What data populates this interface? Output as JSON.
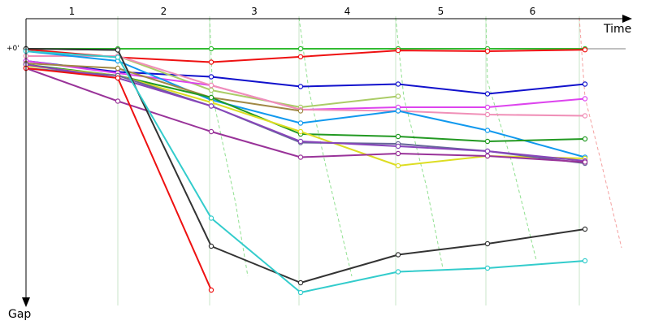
{
  "chart_data": {
    "type": "line",
    "title": "",
    "xlabel": "Time",
    "ylabel": "Gap",
    "zero_label": "+0'",
    "lap_labels": [
      "1",
      "2",
      "3",
      "4",
      "5",
      "6"
    ],
    "ylim": [
      0,
      1
    ],
    "grid": true,
    "colors": {
      "axis": "#000000",
      "baseline": "#808080",
      "grid": "#c8e6c8",
      "lap_trend": "#90e090",
      "lap_trend_last": "#f4a0a0"
    },
    "series": [
      {
        "color": "#33bb33",
        "points": [
          [
            0.0,
            0.0
          ],
          [
            1.0,
            0.0
          ],
          [
            2.0,
            0.0
          ],
          [
            3.0,
            0.0
          ],
          [
            4.0,
            0.0
          ],
          [
            5.0,
            0.0
          ],
          [
            6.0,
            0.0
          ]
        ]
      },
      {
        "color": "#666666",
        "points": [
          [
            0.0,
            0.0
          ],
          [
            1.0,
            0.005
          ]
        ]
      },
      {
        "color": "#ee1111",
        "points": [
          [
            0.0,
            0.003
          ],
          [
            1.0,
            0.035
          ],
          [
            2.0,
            0.055
          ],
          [
            3.0,
            0.033
          ],
          [
            4.0,
            0.007
          ],
          [
            5.0,
            0.01
          ],
          [
            6.0,
            0.004
          ]
        ]
      },
      {
        "color": "#1111cc",
        "points": [
          [
            0.0,
            0.05
          ],
          [
            1.0,
            0.095
          ],
          [
            2.0,
            0.115
          ],
          [
            3.0,
            0.155
          ],
          [
            4.0,
            0.145
          ],
          [
            5.0,
            0.185
          ],
          [
            6.0,
            0.145
          ]
        ]
      },
      {
        "color": "#aacc66",
        "points": [
          [
            0.0,
            0.03
          ],
          [
            1.0,
            0.03
          ],
          [
            2.0,
            0.17
          ],
          [
            3.0,
            0.24
          ],
          [
            4.0,
            0.195
          ]
        ]
      },
      {
        "color": "#dd44ee",
        "points": [
          [
            0.0,
            0.05
          ],
          [
            1.0,
            0.1
          ],
          [
            2.0,
            0.15
          ],
          [
            3.0,
            0.25
          ],
          [
            4.0,
            0.24
          ],
          [
            5.0,
            0.24
          ],
          [
            6.0,
            0.205
          ]
        ]
      },
      {
        "color": "#f090b8",
        "points": [
          [
            0.0,
            0.03
          ],
          [
            1.0,
            0.03
          ],
          [
            2.0,
            0.15
          ],
          [
            3.0,
            0.25
          ],
          [
            4.0,
            0.255
          ],
          [
            5.0,
            0.27
          ],
          [
            6.0,
            0.275
          ]
        ]
      },
      {
        "color": "#1199ee",
        "points": [
          [
            0.0,
            0.01
          ],
          [
            1.0,
            0.05
          ],
          [
            2.0,
            0.21
          ],
          [
            3.0,
            0.305
          ],
          [
            4.0,
            0.255
          ],
          [
            5.0,
            0.335
          ],
          [
            6.0,
            0.445
          ]
        ]
      },
      {
        "color": "#a08844",
        "points": [
          [
            0.0,
            0.06
          ],
          [
            1.0,
            0.08
          ],
          [
            2.0,
            0.2
          ],
          [
            3.0,
            0.255
          ]
        ]
      },
      {
        "color": "#229922",
        "points": [
          [
            0.0,
            0.065
          ],
          [
            1.0,
            0.11
          ],
          [
            2.0,
            0.2
          ],
          [
            3.0,
            0.35
          ],
          [
            4.0,
            0.36
          ],
          [
            5.0,
            0.38
          ],
          [
            6.0,
            0.37
          ]
        ]
      },
      {
        "color": "#dddd22",
        "points": [
          [
            0.0,
            0.07
          ],
          [
            1.0,
            0.11
          ],
          [
            2.0,
            0.22
          ],
          [
            3.0,
            0.34
          ],
          [
            4.0,
            0.48
          ],
          [
            5.0,
            0.44
          ],
          [
            6.0,
            0.45
          ]
        ]
      },
      {
        "color": "#666699",
        "points": [
          [
            0.0,
            0.08
          ],
          [
            1.0,
            0.11
          ],
          [
            2.0,
            0.235
          ],
          [
            3.0,
            0.385
          ],
          [
            4.0,
            0.39
          ],
          [
            5.0,
            0.42
          ],
          [
            6.0,
            0.47
          ]
        ]
      },
      {
        "color": "#8844bb",
        "points": [
          [
            0.0,
            0.065
          ],
          [
            1.0,
            0.12
          ],
          [
            2.0,
            0.235
          ],
          [
            3.0,
            0.38
          ],
          [
            4.0,
            0.4
          ],
          [
            5.0,
            0.42
          ],
          [
            6.0,
            0.46
          ]
        ]
      },
      {
        "color": "#993399",
        "points": [
          [
            0.0,
            0.08
          ],
          [
            1.0,
            0.215
          ],
          [
            2.0,
            0.34
          ],
          [
            3.0,
            0.445
          ],
          [
            4.0,
            0.43
          ],
          [
            5.0,
            0.44
          ],
          [
            6.0,
            0.465
          ]
        ]
      },
      {
        "color": "#333333",
        "points": [
          [
            0.0,
            0.0
          ],
          [
            1.0,
            0.005
          ],
          [
            2.0,
            0.81
          ],
          [
            3.0,
            0.96
          ],
          [
            4.0,
            0.845
          ],
          [
            5.0,
            0.8
          ],
          [
            6.0,
            0.74
          ]
        ]
      },
      {
        "color": "#33cccc",
        "points": [
          [
            0.0,
            0.01
          ],
          [
            1.0,
            0.035
          ],
          [
            2.0,
            0.695
          ],
          [
            3.0,
            1.0
          ],
          [
            4.0,
            0.915
          ],
          [
            5.0,
            0.9
          ],
          [
            6.0,
            0.87
          ]
        ]
      },
      {
        "color": "#ee1111",
        "points": [
          [
            0.0,
            0.08
          ],
          [
            1.0,
            0.12
          ],
          [
            2.0,
            0.99
          ]
        ]
      }
    ],
    "lap_trends": [
      {
        "lap": 1,
        "points": [
          [
            1.0,
            0.0
          ],
          [
            1.0,
            1.0
          ]
        ]
      },
      {
        "lap": 2,
        "points": [
          [
            2.0,
            0.0
          ],
          [
            2.0,
            0.3
          ],
          [
            2.0,
            0.69
          ],
          [
            2.0,
            0.81
          ]
        ]
      },
      {
        "lap": 3,
        "points": [
          [
            3.0,
            0.0
          ],
          [
            3.0,
            0.25
          ],
          [
            3.0,
            0.39
          ],
          [
            3.0,
            1.0
          ]
        ]
      },
      {
        "lap": 4,
        "points": [
          [
            4.0,
            0.0
          ],
          [
            4.0,
            0.35
          ],
          [
            4.0,
            0.48
          ],
          [
            4.0,
            0.915
          ]
        ]
      },
      {
        "lap": 5,
        "points": [
          [
            5.0,
            0.0
          ],
          [
            5.0,
            0.33
          ],
          [
            5.0,
            0.44
          ],
          [
            5.0,
            0.9
          ]
        ]
      },
      {
        "lap": 6,
        "points": [
          [
            6.0,
            0.0
          ],
          [
            6.0,
            0.27
          ],
          [
            6.0,
            0.46
          ],
          [
            6.0,
            0.87
          ]
        ]
      }
    ]
  }
}
